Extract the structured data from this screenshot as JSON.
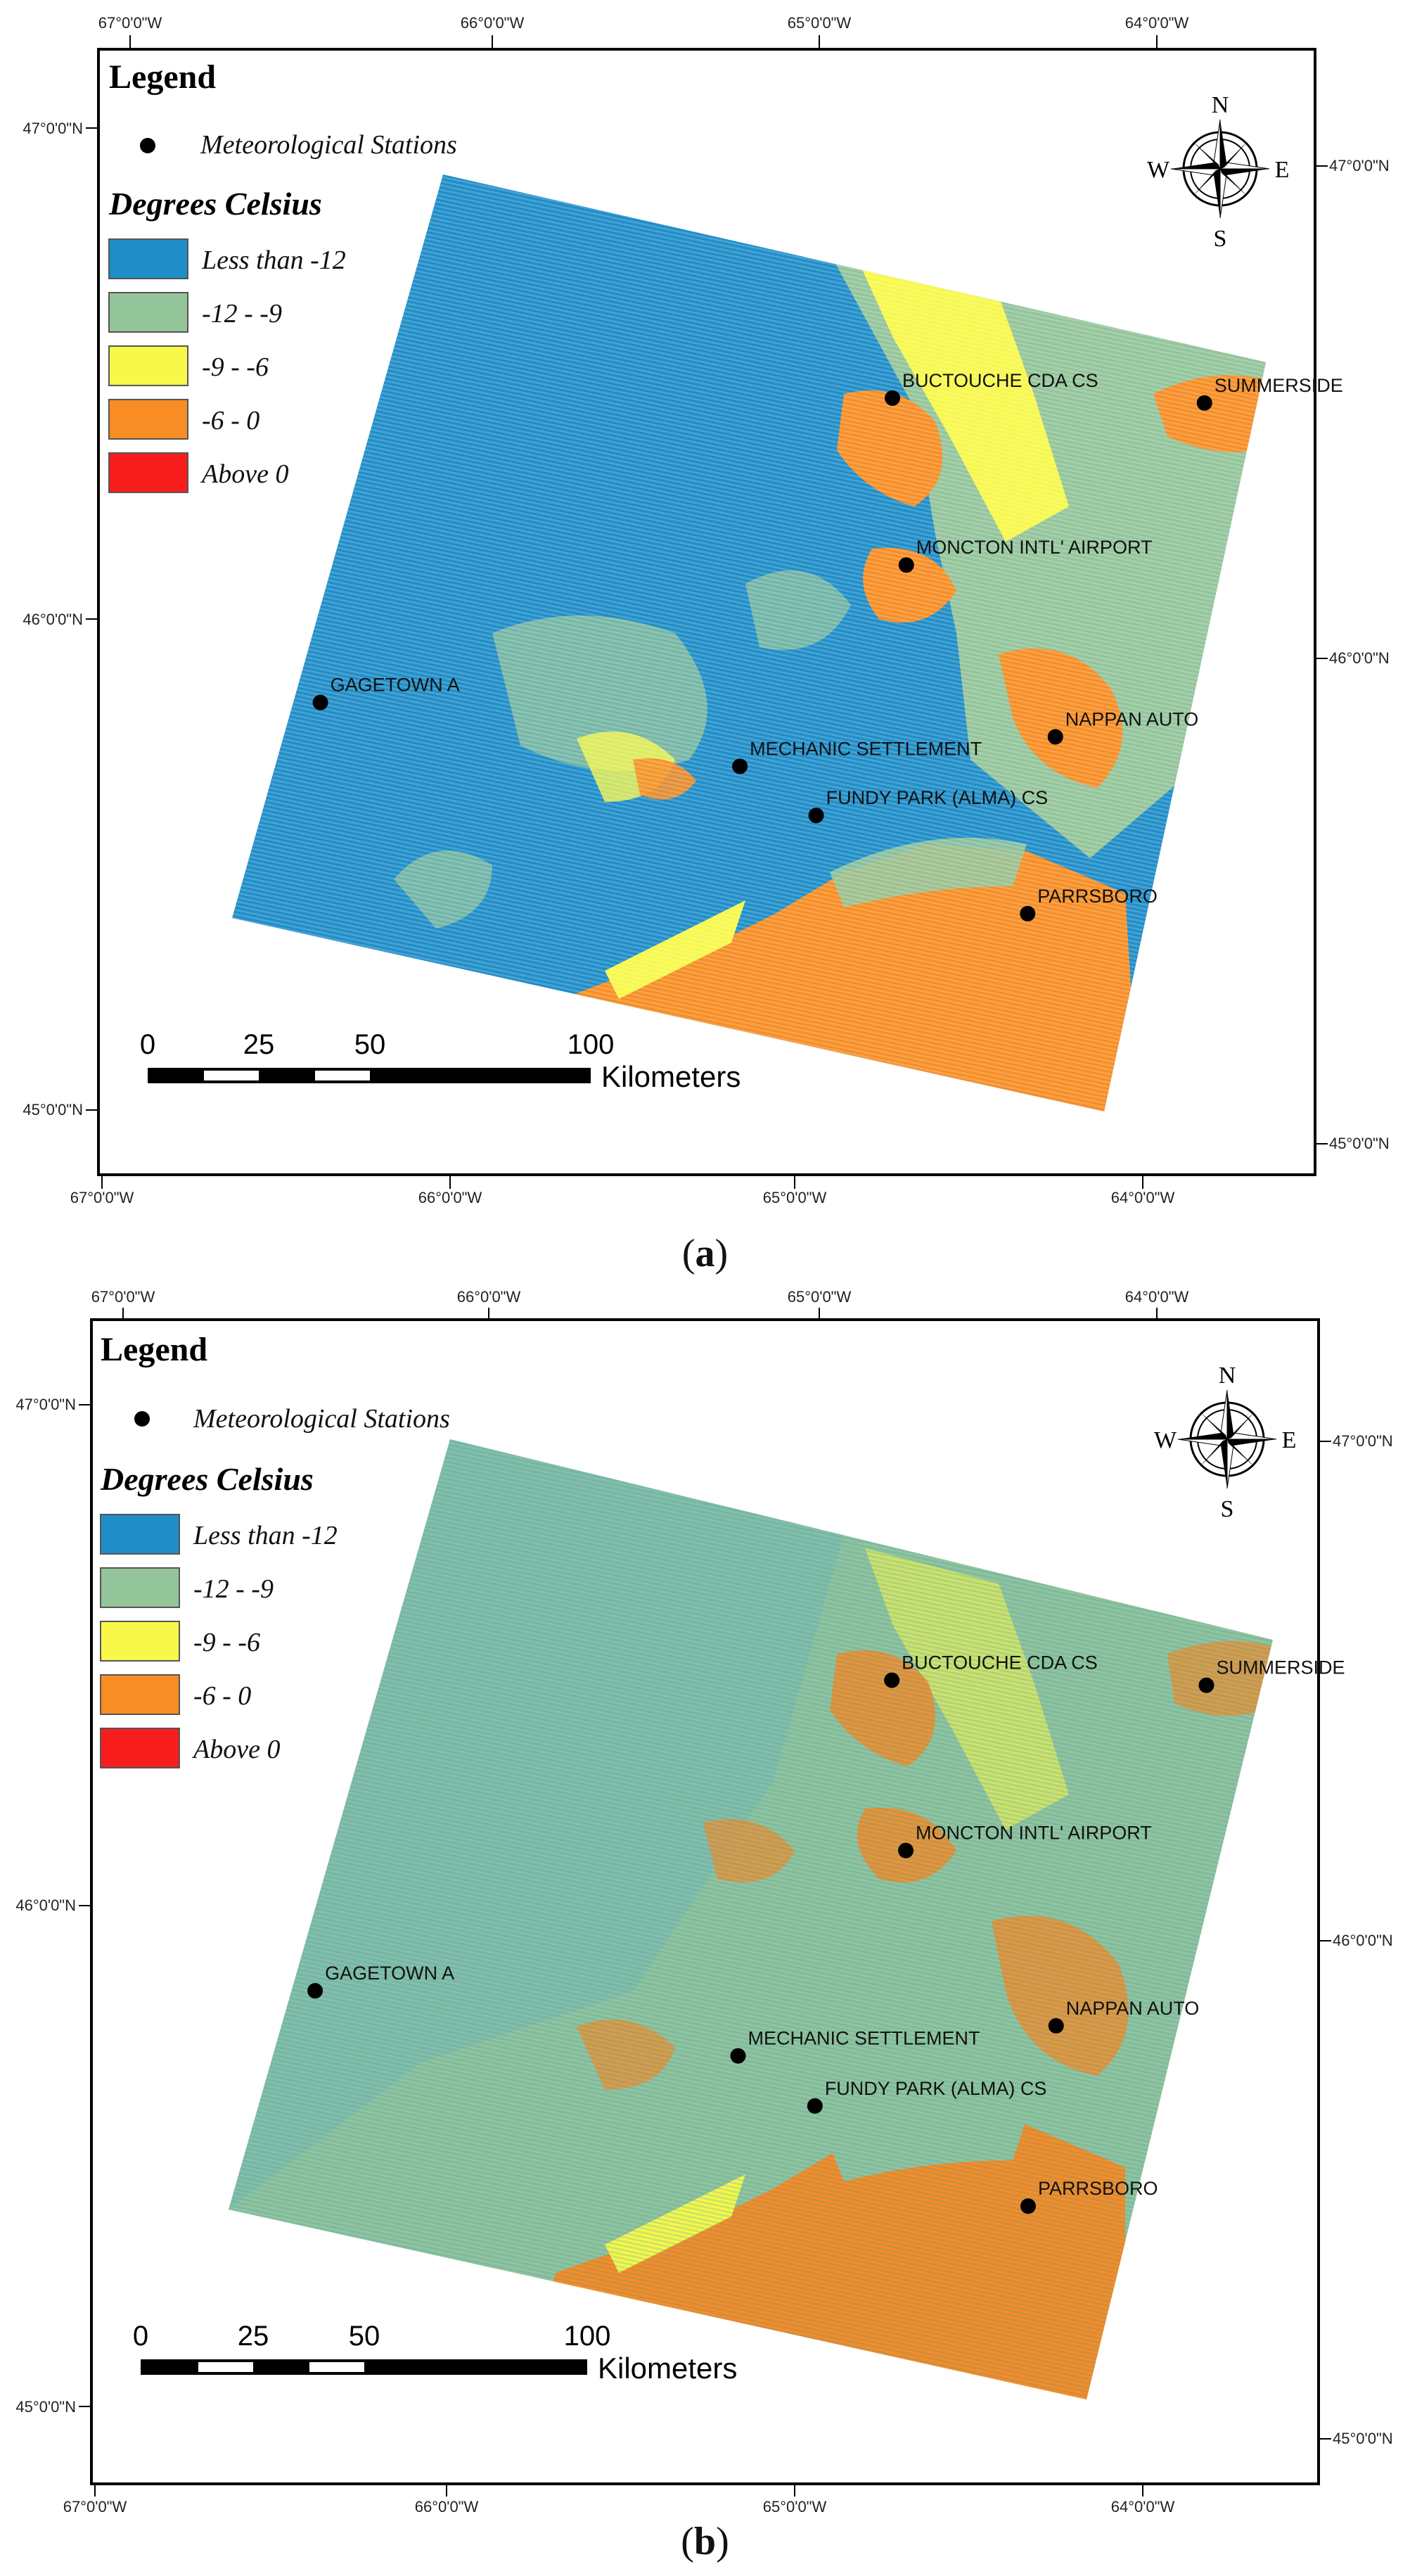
{
  "figure": {
    "panels": [
      {
        "caption": "(a)",
        "caption_letter": "a",
        "legend": {
          "title": "Legend",
          "station_label": "Meteorological Stations",
          "units_title": "Degrees Celsius",
          "classes": [
            {
              "label": "Less than -12",
              "color": "#1f8dc8"
            },
            {
              "label": "-12 - -9",
              "color": "#93c49a"
            },
            {
              "label": "-9 - -6",
              "color": "#f7f84a"
            },
            {
              "label": "-6 - 0",
              "color": "#f78d24"
            },
            {
              "label": "Above 0",
              "color": "#f71d1d"
            }
          ]
        },
        "lon_labels": [
          "67°0'0\"W",
          "66°0'0\"W",
          "65°0'0\"W",
          "64°0'0\"W"
        ],
        "lat_labels_left": [
          "47°0'0\"N",
          "46°0'0\"N",
          "45°0'0\"N"
        ],
        "lat_labels_right": [
          "47°0'0\"N",
          "46°0'0\"N",
          "45°0'0\"N"
        ],
        "north_arrow": {
          "n": "N",
          "s": "S",
          "e": "E",
          "w": "W"
        },
        "scale_bar": {
          "ticks": [
            "0",
            "25",
            "50",
            "100"
          ],
          "unit": "Kilometers"
        },
        "stations": [
          {
            "name": "BUCTOUCHE CDA CS",
            "lon": -64.72,
            "lat": 46.45
          },
          {
            "name": "SUMMERSIDE",
            "lon": -63.82,
            "lat": 46.44
          },
          {
            "name": "MONCTON INTL' AIRPORT",
            "lon": -64.68,
            "lat": 46.11
          },
          {
            "name": "GAGETOWN A",
            "lon": -66.37,
            "lat": 45.83
          },
          {
            "name": "MECHANIC SETTLEMENT",
            "lon": -65.16,
            "lat": 45.7
          },
          {
            "name": "NAPPAN AUTO",
            "lon": -64.25,
            "lat": 45.76
          },
          {
            "name": "FUNDY PARK (ALMA) CS",
            "lon": -64.94,
            "lat": 45.6
          },
          {
            "name": "PARRSBORO",
            "lon": -64.33,
            "lat": 45.4
          }
        ],
        "dominant_class": "Less than -12"
      },
      {
        "caption": "(b)",
        "caption_letter": "b",
        "legend": {
          "title": "Legend",
          "station_label": "Meteorological Stations",
          "units_title": "Degrees Celsius",
          "classes": [
            {
              "label": "Less than -12",
              "color": "#1f8dc8"
            },
            {
              "label": "-12 - -9",
              "color": "#93c49a"
            },
            {
              "label": "-9 - -6",
              "color": "#f7f84a"
            },
            {
              "label": "-6 - 0",
              "color": "#f78d24"
            },
            {
              "label": "Above 0",
              "color": "#f71d1d"
            }
          ]
        },
        "lon_labels": [
          "67°0'0\"W",
          "66°0'0\"W",
          "65°0'0\"W",
          "64°0'0\"W"
        ],
        "lat_labels_left": [
          "47°0'0\"N",
          "46°0'0\"N",
          "45°0'0\"N"
        ],
        "lat_labels_right": [
          "47°0'0\"N",
          "46°0'0\"N",
          "45°0'0\"N"
        ],
        "north_arrow": {
          "n": "N",
          "s": "S",
          "e": "E",
          "w": "W"
        },
        "scale_bar": {
          "ticks": [
            "0",
            "25",
            "50",
            "100"
          ],
          "unit": "Kilometers"
        },
        "stations": [
          {
            "name": "BUCTOUCHE CDA CS",
            "lon": -64.72,
            "lat": 46.45
          },
          {
            "name": "SUMMERSIDE",
            "lon": -63.82,
            "lat": 46.44
          },
          {
            "name": "MONCTON INTL' AIRPORT",
            "lon": -64.68,
            "lat": 46.11
          },
          {
            "name": "GAGETOWN A",
            "lon": -66.37,
            "lat": 45.83
          },
          {
            "name": "MECHANIC SETTLEMENT",
            "lon": -65.16,
            "lat": 45.7
          },
          {
            "name": "NAPPAN AUTO",
            "lon": -64.25,
            "lat": 45.76
          },
          {
            "name": "FUNDY PARK (ALMA) CS",
            "lon": -64.94,
            "lat": 45.6
          },
          {
            "name": "PARRSBORO",
            "lon": -64.33,
            "lat": 45.4
          }
        ],
        "dominant_class": "-12 - -9"
      }
    ]
  }
}
